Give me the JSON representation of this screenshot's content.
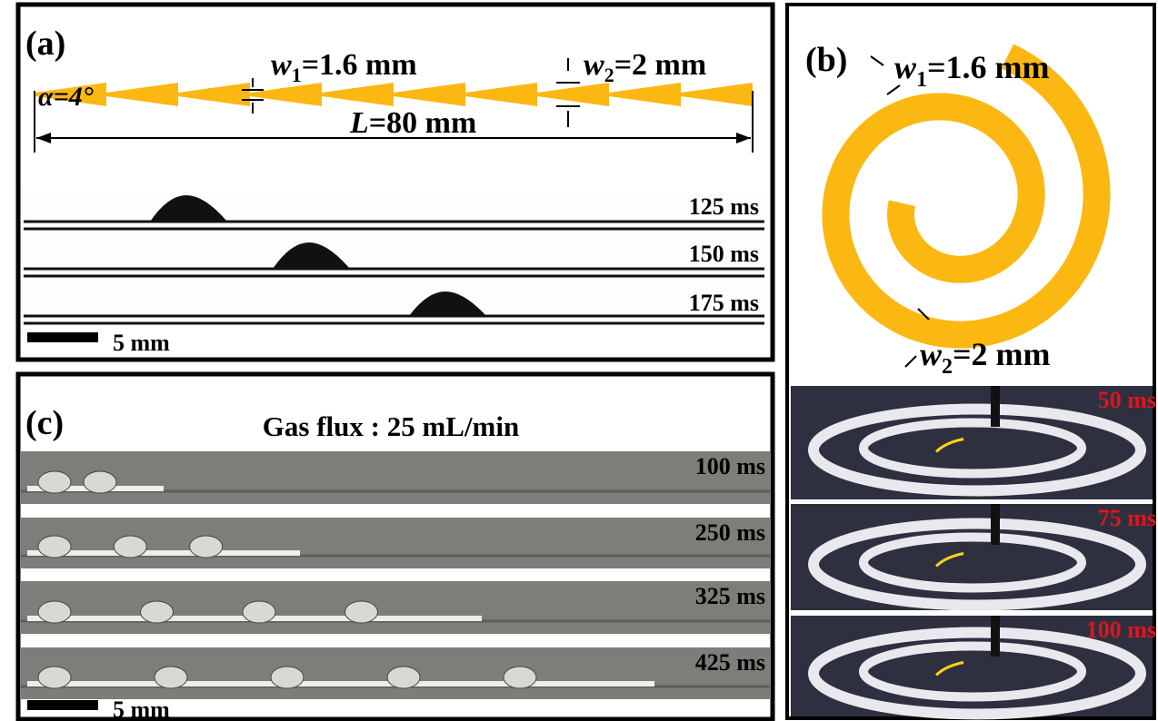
{
  "panel_a": {
    "label": "(a)",
    "angle": "α=4°",
    "w1": {
      "symbol": "w",
      "sub": "1",
      "value": "=1.6 mm"
    },
    "w2": {
      "symbol": "w",
      "sub": "2",
      "value": "=2 mm"
    },
    "length": {
      "symbol": "L",
      "value": "=80 mm"
    },
    "frames": [
      "125 ms",
      "150 ms",
      "175 ms"
    ],
    "scale_bar": "5 mm"
  },
  "panel_b": {
    "label": "(b)",
    "w1": {
      "symbol": "w",
      "sub": "1",
      "value": "=1.6 mm"
    },
    "w2": {
      "symbol": "w",
      "sub": "2",
      "value": "=2 mm"
    },
    "frames": [
      "50 ms",
      "75 ms",
      "100 ms"
    ]
  },
  "panel_c": {
    "label": "(c)",
    "title": "Gas flux : 25 mL/min",
    "frames": [
      "100 ms",
      "250 ms",
      "325 ms",
      "425 ms"
    ],
    "scale_bar": "5 mm"
  }
}
